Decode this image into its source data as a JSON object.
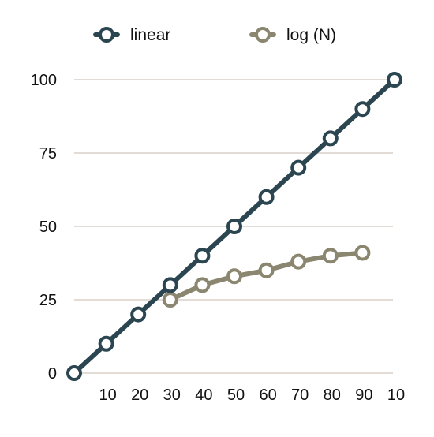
{
  "chart_data": {
    "type": "line",
    "title": "",
    "xlabel": "",
    "ylabel": "",
    "x_tick_labels": [
      "10",
      "20",
      "30",
      "40",
      "50",
      "60",
      "70",
      "80",
      "90",
      "10"
    ],
    "y_tick_labels": [
      "0",
      "25",
      "50",
      "75",
      "100"
    ],
    "ylim": [
      0,
      100
    ],
    "grid": true,
    "legend_position": "top",
    "series": [
      {
        "name": "linear",
        "color": "#2b4650",
        "values": [
          0,
          10,
          20,
          30,
          40,
          50,
          60,
          70,
          80,
          90,
          100
        ]
      },
      {
        "name": "log (N)",
        "color": "#8a8670",
        "values": [
          null,
          null,
          null,
          25,
          30,
          33,
          35,
          38,
          40,
          41,
          null
        ]
      }
    ]
  }
}
